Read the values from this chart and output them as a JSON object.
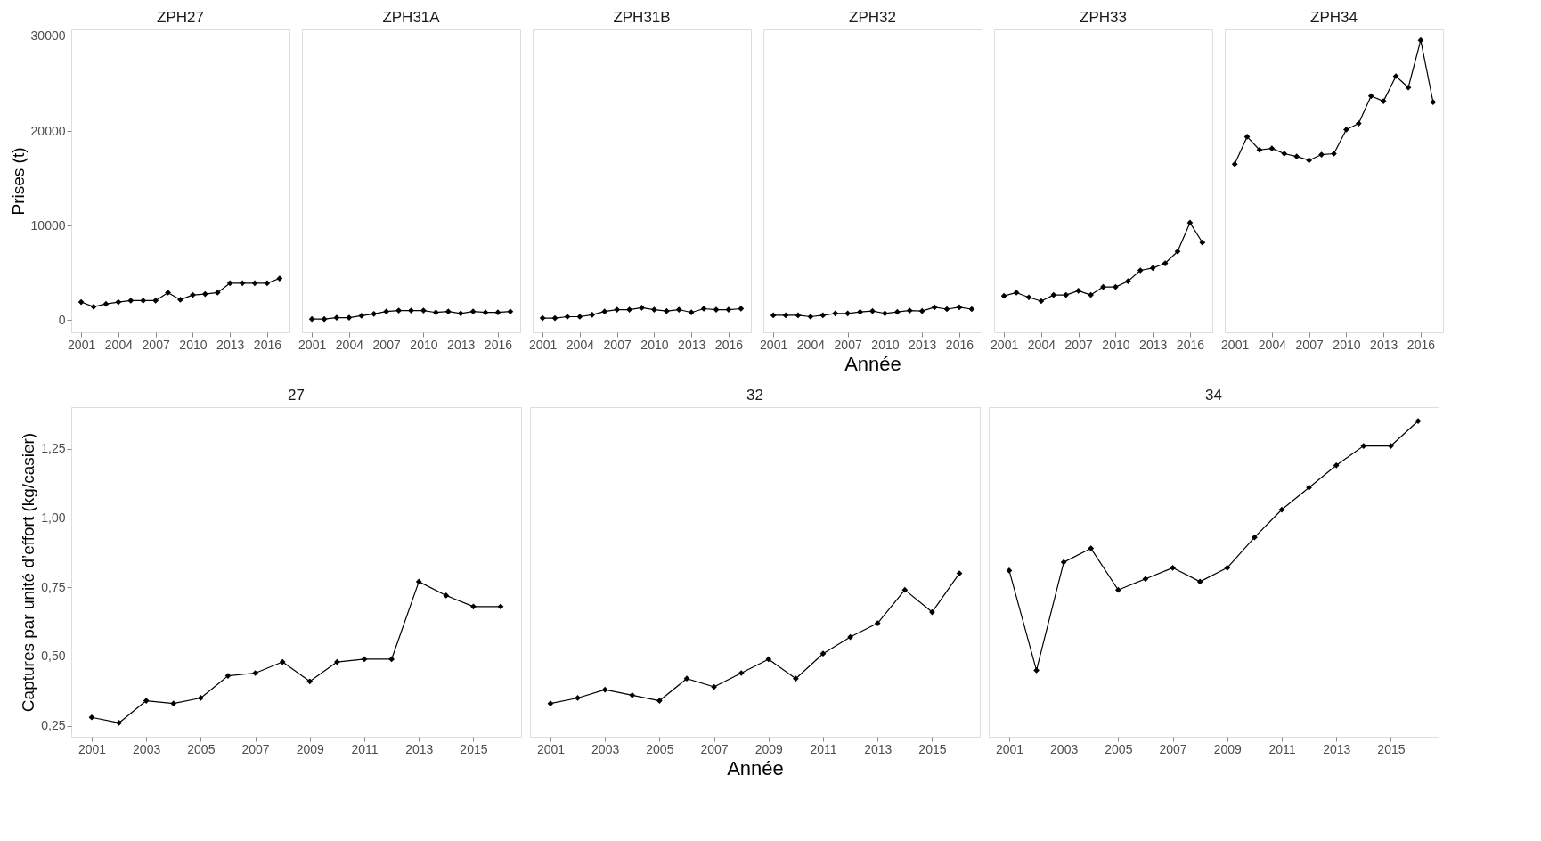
{
  "chart_data": [
    {
      "type": "line",
      "title": "ZPH27",
      "ylabel": "Prises (t)",
      "x": [
        2001,
        2002,
        2003,
        2004,
        2005,
        2006,
        2007,
        2008,
        2009,
        2010,
        2011,
        2012,
        2013,
        2014,
        2015,
        2016,
        2017
      ],
      "values": [
        1900,
        1400,
        1700,
        1900,
        2050,
        2050,
        2050,
        2900,
        2150,
        2650,
        2750,
        2900,
        3900,
        3900,
        3900,
        3900,
        4400
      ],
      "color": "#000000",
      "xlim": [
        2000.2,
        2017.8
      ],
      "xticks": [
        2001,
        2004,
        2007,
        2010,
        2013,
        2016
      ],
      "ylim": [
        -1300,
        30750
      ],
      "yticks": [
        0,
        10000,
        20000,
        30000
      ],
      "marker": "diamond",
      "line_style": "solid",
      "grid": false
    },
    {
      "type": "line",
      "title": "ZPH31A",
      "x": [
        2001,
        2002,
        2003,
        2004,
        2005,
        2006,
        2007,
        2008,
        2009,
        2010,
        2011,
        2012,
        2013,
        2014,
        2015,
        2016,
        2017
      ],
      "values": [
        100,
        100,
        250,
        250,
        450,
        650,
        900,
        1000,
        1000,
        1000,
        800,
        900,
        700,
        900,
        800,
        800,
        900
      ],
      "color": "#000000",
      "xlim": [
        2000.2,
        2017.8
      ],
      "xticks": [
        2001,
        2004,
        2007,
        2010,
        2013,
        2016
      ],
      "ylim": [
        -1300,
        30750
      ],
      "tick_labels": "x",
      "marker": "diamond",
      "line_style": "solid",
      "grid": false
    },
    {
      "type": "line",
      "title": "ZPH31B",
      "x": [
        2001,
        2002,
        2003,
        2004,
        2005,
        2006,
        2007,
        2008,
        2009,
        2010,
        2011,
        2012,
        2013,
        2014,
        2015,
        2016,
        2017
      ],
      "values": [
        200,
        200,
        350,
        350,
        550,
        900,
        1100,
        1100,
        1300,
        1100,
        950,
        1100,
        800,
        1200,
        1100,
        1100,
        1200
      ],
      "color": "#000000",
      "xlim": [
        2000.2,
        2017.8
      ],
      "xticks": [
        2001,
        2004,
        2007,
        2010,
        2013,
        2016
      ],
      "ylim": [
        -1300,
        30750
      ],
      "tick_labels": "x",
      "marker": "diamond",
      "line_style": "solid",
      "grid": false
    },
    {
      "type": "line",
      "title": "ZPH32",
      "xlabel": "Année",
      "x": [
        2001,
        2002,
        2003,
        2004,
        2005,
        2006,
        2007,
        2008,
        2009,
        2010,
        2011,
        2012,
        2013,
        2014,
        2015,
        2016,
        2017
      ],
      "values": [
        500,
        500,
        500,
        350,
        500,
        700,
        700,
        850,
        950,
        700,
        850,
        1000,
        950,
        1350,
        1150,
        1350,
        1150
      ],
      "color": "#000000",
      "xlim": [
        2000.2,
        2017.8
      ],
      "xticks": [
        2001,
        2004,
        2007,
        2010,
        2013,
        2016
      ],
      "ylim": [
        -1300,
        30750
      ],
      "tick_labels": "x",
      "marker": "diamond",
      "line_style": "solid",
      "grid": false
    },
    {
      "type": "line",
      "title": "ZPH33",
      "x": [
        2001,
        2002,
        2003,
        2004,
        2005,
        2006,
        2007,
        2008,
        2009,
        2010,
        2011,
        2012,
        2013,
        2014,
        2015,
        2016,
        2017
      ],
      "values": [
        2550,
        2900,
        2400,
        2000,
        2650,
        2650,
        3100,
        2650,
        3500,
        3500,
        4100,
        5250,
        5500,
        6000,
        7250,
        10300,
        8200
      ],
      "color": "#000000",
      "xlim": [
        2000.2,
        2017.8
      ],
      "xticks": [
        2001,
        2004,
        2007,
        2010,
        2013,
        2016
      ],
      "ylim": [
        -1300,
        30750
      ],
      "tick_labels": "x",
      "marker": "diamond",
      "line_style": "solid",
      "grid": false
    },
    {
      "type": "line",
      "title": "ZPH34",
      "x": [
        2001,
        2002,
        2003,
        2004,
        2005,
        2006,
        2007,
        2008,
        2009,
        2010,
        2011,
        2012,
        2013,
        2014,
        2015,
        2016,
        2017
      ],
      "values": [
        16500,
        19400,
        18000,
        18150,
        17600,
        17300,
        16900,
        17500,
        17600,
        20150,
        20800,
        23700,
        23150,
        25800,
        24600,
        29600,
        23050
      ],
      "color": "#000000",
      "xlim": [
        2000.2,
        2017.8
      ],
      "xticks": [
        2001,
        2004,
        2007,
        2010,
        2013,
        2016
      ],
      "ylim": [
        -1300,
        30750
      ],
      "tick_labels": "x",
      "marker": "diamond",
      "line_style": "solid",
      "grid": false
    },
    {
      "type": "line",
      "title": "27",
      "ylabel": "Captures par unité d’effort (kg/casier)",
      "x": [
        2001,
        2002,
        2003,
        2004,
        2005,
        2006,
        2007,
        2008,
        2009,
        2010,
        2011,
        2012,
        2013,
        2014,
        2015,
        2016
      ],
      "values": [
        0.28,
        0.26,
        0.34,
        0.33,
        0.35,
        0.43,
        0.44,
        0.48,
        0.41,
        0.48,
        0.49,
        0.49,
        0.77,
        0.72,
        0.68,
        0.68
      ],
      "color": "#000000",
      "xlim": [
        2000.25,
        2016.75
      ],
      "xticks": [
        2001,
        2003,
        2005,
        2007,
        2009,
        2011,
        2013,
        2015
      ],
      "ylim": [
        0.21,
        1.4
      ],
      "yticks": [
        {
          "value": 0.25,
          "label": "0,25"
        },
        {
          "value": 0.5,
          "label": "0,50"
        },
        {
          "value": 0.75,
          "label": "0,75"
        },
        {
          "value": 1.0,
          "label": "1,00"
        },
        {
          "value": 1.25,
          "label": "1,25"
        }
      ],
      "marker": "diamond",
      "line_style": "solid",
      "grid": false
    },
    {
      "type": "line",
      "title": "32",
      "xlabel": "Année",
      "x": [
        2001,
        2002,
        2003,
        2004,
        2005,
        2006,
        2007,
        2008,
        2009,
        2010,
        2011,
        2012,
        2013,
        2014,
        2015,
        2016
      ],
      "values": [
        0.33,
        0.35,
        0.38,
        0.36,
        0.34,
        0.42,
        0.39,
        0.44,
        0.49,
        0.42,
        0.51,
        0.57,
        0.62,
        0.74,
        0.66,
        0.8
      ],
      "color": "#000000",
      "xlim": [
        2000.25,
        2016.75
      ],
      "xticks": [
        2001,
        2003,
        2005,
        2007,
        2009,
        2011,
        2013,
        2015
      ],
      "ylim": [
        0.21,
        1.4
      ],
      "tick_labels": "x",
      "marker": "diamond",
      "line_style": "solid",
      "grid": false
    },
    {
      "type": "line",
      "title": "34",
      "x": [
        2001,
        2002,
        2003,
        2004,
        2005,
        2006,
        2007,
        2008,
        2009,
        2010,
        2011,
        2012,
        2013,
        2014,
        2015,
        2016
      ],
      "values": [
        0.81,
        0.45,
        0.84,
        0.89,
        0.74,
        0.78,
        0.82,
        0.77,
        0.82,
        0.93,
        1.03,
        1.11,
        1.19,
        1.26,
        1.26,
        1.35
      ],
      "color": "#000000",
      "xlim": [
        2000.25,
        2016.75
      ],
      "xticks": [
        2001,
        2003,
        2005,
        2007,
        2009,
        2011,
        2013,
        2015
      ],
      "ylim": [
        0.21,
        1.4
      ],
      "tick_labels": "x",
      "marker": "diamond",
      "line_style": "solid",
      "grid": false
    }
  ]
}
